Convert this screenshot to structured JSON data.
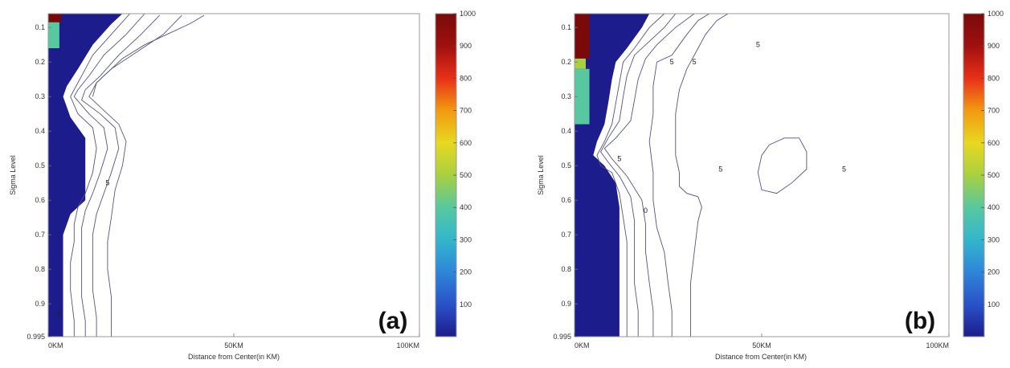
{
  "chart_data": [
    {
      "type": "heatmap",
      "panel_label": "(a)",
      "xlabel": "Distance from Center(in KM)",
      "ylabel": "Sigma Level",
      "xlim": [
        0,
        100
      ],
      "ylim": [
        0.06,
        0.995
      ],
      "y_reversed": true,
      "xticks": [
        "0KM",
        "50KM",
        "100KM"
      ],
      "xtick_values": [
        0,
        50,
        100
      ],
      "yticks": [
        "0.1",
        "0.2",
        "0.3",
        "0.4",
        "0.5",
        "0.6",
        "0.7",
        "0.8",
        "0.9",
        "0.995"
      ],
      "ytick_values": [
        0.1,
        0.2,
        0.3,
        0.4,
        0.5,
        0.6,
        0.7,
        0.8,
        0.9,
        0.995
      ],
      "colorbar": {
        "range": [
          0,
          1000
        ],
        "ticks": [
          "100",
          "200",
          "300",
          "400",
          "500",
          "600",
          "700",
          "800",
          "900",
          "1000"
        ],
        "tick_values": [
          100,
          200,
          300,
          400,
          500,
          600,
          700,
          800,
          900,
          1000
        ],
        "colors": [
          "#1c1c8c",
          "#2a52c8",
          "#2e86d8",
          "#33b6cc",
          "#58c8a0",
          "#a8d040",
          "#e8d820",
          "#f29a10",
          "#e83018",
          "#a01010",
          "#7a0a0a"
        ]
      },
      "filled_region": [
        [
          0,
          0.06
        ],
        [
          20,
          0.06
        ],
        [
          17,
          0.09
        ],
        [
          12,
          0.15
        ],
        [
          8,
          0.22
        ],
        [
          5,
          0.27
        ],
        [
          4,
          0.3
        ],
        [
          6,
          0.36
        ],
        [
          10,
          0.42
        ],
        [
          10,
          0.55
        ],
        [
          10,
          0.6
        ],
        [
          6,
          0.64
        ],
        [
          4,
          0.7
        ],
        [
          4,
          0.995
        ],
        [
          0,
          0.995
        ]
      ],
      "high_patches": [
        {
          "value": 950,
          "points": [
            [
              0,
              0.06
            ],
            [
              3.5,
              0.06
            ],
            [
              3.5,
              0.085
            ],
            [
              0,
              0.085
            ]
          ]
        },
        {
          "value": 380,
          "points": [
            [
              0,
              0.085
            ],
            [
              3,
              0.085
            ],
            [
              3,
              0.16
            ],
            [
              0,
              0.16
            ]
          ]
        }
      ],
      "contour_lines": [
        [
          [
            22,
            0.06
          ],
          [
            17,
            0.12
          ],
          [
            12,
            0.18
          ],
          [
            9,
            0.24
          ],
          [
            7,
            0.28
          ],
          [
            6,
            0.3
          ],
          [
            8,
            0.35
          ],
          [
            12,
            0.39
          ],
          [
            13,
            0.45
          ],
          [
            12,
            0.52
          ],
          [
            10,
            0.58
          ],
          [
            8,
            0.62
          ],
          [
            7,
            0.67
          ],
          [
            7,
            0.72
          ],
          [
            6,
            0.78
          ],
          [
            6,
            0.86
          ],
          [
            7,
            0.95
          ],
          [
            7,
            0.995
          ]
        ],
        [
          [
            26,
            0.06
          ],
          [
            21,
            0.12
          ],
          [
            15,
            0.18
          ],
          [
            11,
            0.24
          ],
          [
            8,
            0.28
          ],
          [
            7,
            0.3
          ],
          [
            11,
            0.35
          ],
          [
            15,
            0.39
          ],
          [
            16,
            0.45
          ],
          [
            14,
            0.52
          ],
          [
            12,
            0.58
          ],
          [
            10,
            0.63
          ],
          [
            9,
            0.68
          ],
          [
            9,
            0.74
          ],
          [
            9,
            0.8
          ],
          [
            9,
            0.88
          ],
          [
            10,
            0.95
          ],
          [
            10,
            0.995
          ]
        ],
        [
          [
            30,
            0.065
          ],
          [
            25,
            0.12
          ],
          [
            19,
            0.18
          ],
          [
            14,
            0.24
          ],
          [
            10,
            0.28
          ],
          [
            9,
            0.31
          ],
          [
            14,
            0.35
          ],
          [
            18,
            0.39
          ],
          [
            19,
            0.45
          ],
          [
            17,
            0.52
          ],
          [
            15,
            0.58
          ],
          [
            13,
            0.64
          ],
          [
            12,
            0.7
          ],
          [
            12,
            0.78
          ],
          [
            12,
            0.86
          ],
          [
            13,
            0.94
          ],
          [
            13,
            0.995
          ]
        ],
        [
          [
            36,
            0.065
          ],
          [
            31,
            0.12
          ],
          [
            24,
            0.17
          ],
          [
            17,
            0.22
          ],
          [
            13,
            0.26
          ],
          [
            11,
            0.3
          ],
          [
            15,
            0.34
          ],
          [
            19,
            0.38
          ],
          [
            21,
            0.43
          ],
          [
            20,
            0.5
          ],
          [
            18,
            0.57
          ],
          [
            17,
            0.65
          ],
          [
            16,
            0.72
          ],
          [
            16,
            0.8
          ],
          [
            17,
            0.88
          ],
          [
            17,
            0.995
          ]
        ],
        [
          [
            42,
            0.065
          ],
          [
            38,
            0.09
          ],
          [
            32,
            0.12
          ],
          [
            26,
            0.15
          ],
          [
            20,
            0.19
          ],
          [
            17,
            0.22
          ],
          [
            13,
            0.26
          ],
          [
            12,
            0.3
          ]
        ]
      ],
      "contour_labels": [
        {
          "x": 16,
          "y": 0.55,
          "text": "5"
        },
        {
          "x": 3,
          "y": 0.93,
          "text": "0"
        }
      ]
    },
    {
      "type": "heatmap",
      "panel_label": "(b)",
      "xlabel": "Distance from Center(in KM)",
      "ylabel": "Sigma Level",
      "xlim": [
        0,
        100
      ],
      "ylim": [
        0.06,
        0.995
      ],
      "y_reversed": true,
      "xticks": [
        "0KM",
        "50KM",
        "100KM"
      ],
      "xtick_values": [
        0,
        50,
        100
      ],
      "yticks": [
        "0.1",
        "0.2",
        "0.3",
        "0.4",
        "0.5",
        "0.6",
        "0.7",
        "0.8",
        "0.9",
        "0.995"
      ],
      "ytick_values": [
        0.1,
        0.2,
        0.3,
        0.4,
        0.5,
        0.6,
        0.7,
        0.8,
        0.9,
        0.995
      ],
      "colorbar": {
        "range": [
          0,
          1000
        ],
        "ticks": [
          "100",
          "200",
          "300",
          "400",
          "500",
          "600",
          "700",
          "800",
          "900",
          "1000"
        ],
        "tick_values": [
          100,
          200,
          300,
          400,
          500,
          600,
          700,
          800,
          900,
          1000
        ],
        "colors": [
          "#1c1c8c",
          "#2a52c8",
          "#2e86d8",
          "#33b6cc",
          "#58c8a0",
          "#a8d040",
          "#e8d820",
          "#f29a10",
          "#e83018",
          "#a01010",
          "#7a0a0a"
        ]
      },
      "filled_region": [
        [
          0,
          0.06
        ],
        [
          20,
          0.06
        ],
        [
          18,
          0.1
        ],
        [
          14,
          0.16
        ],
        [
          11,
          0.2
        ],
        [
          10,
          0.25
        ],
        [
          9,
          0.32
        ],
        [
          8,
          0.38
        ],
        [
          6,
          0.43
        ],
        [
          5,
          0.47
        ],
        [
          8,
          0.5
        ],
        [
          11,
          0.55
        ],
        [
          12,
          0.62
        ],
        [
          12,
          0.7
        ],
        [
          12,
          0.8
        ],
        [
          12,
          0.9
        ],
        [
          12,
          0.995
        ],
        [
          0,
          0.995
        ]
      ],
      "high_patches": [
        {
          "value": 960,
          "points": [
            [
              0,
              0.06
            ],
            [
              4,
              0.06
            ],
            [
              4,
              0.19
            ],
            [
              0,
              0.19
            ]
          ]
        },
        {
          "value": 450,
          "points": [
            [
              0,
              0.19
            ],
            [
              3,
              0.19
            ],
            [
              3,
              0.22
            ],
            [
              0,
              0.22
            ]
          ]
        },
        {
          "value": 380,
          "points": [
            [
              0,
              0.22
            ],
            [
              4,
              0.22
            ],
            [
              4,
              0.38
            ],
            [
              0,
              0.38
            ]
          ]
        }
      ],
      "contour_lines": [
        [
          [
            24,
            0.06
          ],
          [
            20,
            0.1
          ],
          [
            16,
            0.16
          ],
          [
            13,
            0.2
          ],
          [
            12,
            0.26
          ],
          [
            11,
            0.32
          ],
          [
            10,
            0.38
          ],
          [
            8,
            0.43
          ],
          [
            6,
            0.47
          ],
          [
            7,
            0.5
          ],
          [
            10,
            0.52
          ],
          [
            12,
            0.58
          ],
          [
            13,
            0.65
          ],
          [
            14,
            0.72
          ],
          [
            14,
            0.8
          ],
          [
            14,
            0.9
          ],
          [
            14,
            0.995
          ]
        ],
        [
          [
            27,
            0.06
          ],
          [
            24,
            0.1
          ],
          [
            20,
            0.14
          ],
          [
            16,
            0.18
          ],
          [
            14,
            0.24
          ],
          [
            13,
            0.3
          ],
          [
            12,
            0.37
          ],
          [
            9,
            0.42
          ],
          [
            7,
            0.46
          ],
          [
            9,
            0.49
          ],
          [
            12,
            0.53
          ],
          [
            15,
            0.59
          ],
          [
            16,
            0.66
          ],
          [
            16,
            0.74
          ],
          [
            16,
            0.84
          ],
          [
            17,
            0.92
          ],
          [
            17,
            0.995
          ]
        ],
        [
          [
            32,
            0.06
          ],
          [
            27,
            0.1
          ],
          [
            22,
            0.15
          ],
          [
            19,
            0.19
          ],
          [
            17,
            0.25
          ],
          [
            16,
            0.31
          ],
          [
            15,
            0.37
          ],
          [
            11,
            0.42
          ],
          [
            8,
            0.45
          ],
          [
            10,
            0.48
          ],
          [
            14,
            0.53
          ],
          [
            18,
            0.6
          ],
          [
            19,
            0.67
          ],
          [
            19,
            0.75
          ],
          [
            20,
            0.84
          ],
          [
            21,
            0.92
          ],
          [
            21,
            0.995
          ]
        ],
        [
          [
            36,
            0.06
          ],
          [
            33,
            0.08
          ],
          [
            30,
            0.12
          ],
          [
            28,
            0.15
          ],
          [
            26,
            0.18
          ],
          [
            22,
            0.2
          ],
          [
            21,
            0.27
          ],
          [
            21,
            0.35
          ],
          [
            20,
            0.43
          ],
          [
            21,
            0.52
          ],
          [
            21,
            0.6
          ],
          [
            22,
            0.68
          ],
          [
            24,
            0.75
          ],
          [
            25,
            0.84
          ],
          [
            26,
            0.92
          ],
          [
            26,
            0.995
          ]
        ],
        [
          [
            52,
            0.44
          ],
          [
            56,
            0.42
          ],
          [
            60,
            0.42
          ],
          [
            62,
            0.46
          ],
          [
            62,
            0.51
          ],
          [
            58,
            0.55
          ],
          [
            54,
            0.58
          ],
          [
            50,
            0.57
          ],
          [
            49,
            0.52
          ],
          [
            50,
            0.47
          ],
          [
            52,
            0.44
          ]
        ],
        [
          [
            41,
            0.06
          ],
          [
            38,
            0.08
          ],
          [
            35,
            0.12
          ],
          [
            33,
            0.16
          ],
          [
            32,
            0.18
          ],
          [
            30,
            0.22
          ],
          [
            28,
            0.28
          ],
          [
            27,
            0.35
          ],
          [
            27,
            0.42
          ],
          [
            27,
            0.47
          ],
          [
            28,
            0.52
          ],
          [
            28,
            0.56
          ],
          [
            30,
            0.58
          ],
          [
            33,
            0.59
          ],
          [
            34,
            0.62
          ],
          [
            33,
            0.66
          ],
          [
            32,
            0.75
          ],
          [
            31,
            0.84
          ],
          [
            31,
            0.92
          ],
          [
            31,
            0.995
          ]
        ]
      ],
      "contour_labels": [
        {
          "x": 49,
          "y": 0.15,
          "text": "5"
        },
        {
          "x": 26,
          "y": 0.2,
          "text": "5"
        },
        {
          "x": 32,
          "y": 0.2,
          "text": "5"
        },
        {
          "x": 12,
          "y": 0.48,
          "text": "5"
        },
        {
          "x": 39,
          "y": 0.51,
          "text": "5"
        },
        {
          "x": 72,
          "y": 0.51,
          "text": "5"
        },
        {
          "x": 19,
          "y": 0.63,
          "text": "0"
        }
      ]
    }
  ]
}
